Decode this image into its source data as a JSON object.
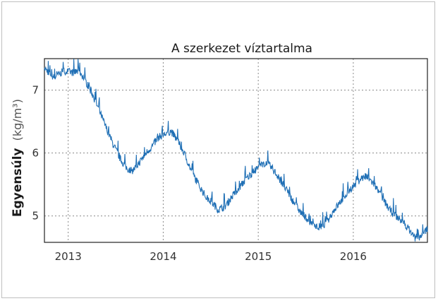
{
  "chart_data": {
    "type": "line",
    "title": "A szerkezet víztartalma",
    "ylabel": "Egyensúly",
    "ylabel_unit": "(kg/m³)",
    "xlabel": "",
    "x_ticks": [
      "2013",
      "2014",
      "2015",
      "2016"
    ],
    "x_tick_values": [
      2013,
      2014,
      2015,
      2016
    ],
    "y_ticks": [
      "5",
      "6",
      "7"
    ],
    "y_tick_values": [
      5,
      6,
      7
    ],
    "xlim": [
      2012.75,
      2016.78
    ],
    "ylim": [
      4.58,
      7.5
    ],
    "grid": true,
    "grid_style": "dotted",
    "line_color": "#1f6fb5",
    "series": [
      {
        "x": [
          2012.75,
          2012.85,
          2012.95,
          2013.05,
          2013.12,
          2013.18,
          2013.25,
          2013.32,
          2013.4,
          2013.47,
          2013.55,
          2013.62,
          2013.68,
          2013.75,
          2013.82,
          2013.88,
          2013.95,
          2014.02,
          2014.08,
          2014.15,
          2014.22,
          2014.3,
          2014.37,
          2014.45,
          2014.52,
          2014.58,
          2014.65,
          2014.72,
          2014.8,
          2014.88,
          2014.95,
          2015.02,
          2015.08,
          2015.15,
          2015.22,
          2015.3,
          2015.38,
          2015.45,
          2015.52,
          2015.58,
          2015.65,
          2015.72,
          2015.8,
          2015.88,
          2015.95,
          2016.02,
          2016.08,
          2016.15,
          2016.22,
          2016.3,
          2016.38,
          2016.45,
          2016.52,
          2016.58,
          2016.65,
          2016.72,
          2016.78
        ],
        "y": [
          7.35,
          7.2,
          7.3,
          7.28,
          7.3,
          7.15,
          6.95,
          6.7,
          6.4,
          6.15,
          5.9,
          5.75,
          5.72,
          5.85,
          6.0,
          6.1,
          6.25,
          6.3,
          6.35,
          6.2,
          6.0,
          5.7,
          5.5,
          5.3,
          5.2,
          5.1,
          5.15,
          5.3,
          5.45,
          5.6,
          5.7,
          5.8,
          5.85,
          5.75,
          5.6,
          5.4,
          5.2,
          5.05,
          4.95,
          4.85,
          4.8,
          4.9,
          5.1,
          5.25,
          5.4,
          5.5,
          5.6,
          5.62,
          5.5,
          5.3,
          5.1,
          5.0,
          4.9,
          4.8,
          4.65,
          4.68,
          4.8
        ]
      }
    ]
  }
}
